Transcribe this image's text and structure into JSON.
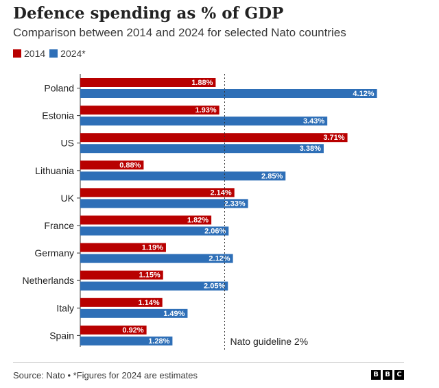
{
  "title": "Defence spending as % of GDP",
  "subtitle": "Comparison between 2014 and 2024 for selected Nato countries",
  "source": "Source: Nato • *Figures for 2024 are estimates",
  "logo": [
    "B",
    "B",
    "C"
  ],
  "colors": {
    "series_2014": "#b80000",
    "series_2024": "#2e6fb7",
    "axis": "#333333",
    "guideline": "#333333"
  },
  "chart_data": {
    "type": "bar",
    "orientation": "horizontal",
    "title": "Defence spending as % of GDP",
    "subtitle": "Comparison between 2014 and 2024 for selected Nato countries",
    "xlabel": "",
    "ylabel": "",
    "xlim": [
      0,
      4.3
    ],
    "categories": [
      "Poland",
      "Estonia",
      "US",
      "Lithuania",
      "UK",
      "France",
      "Germany",
      "Netherlands",
      "Italy",
      "Spain"
    ],
    "series": [
      {
        "name": "2014",
        "color": "#b80000",
        "values": [
          1.88,
          1.93,
          3.71,
          0.88,
          2.14,
          1.82,
          1.19,
          1.15,
          1.14,
          0.92
        ],
        "labels": [
          "1.88%",
          "1.93%",
          "3.71%",
          "0.88%",
          "2.14%",
          "1.82%",
          "1.19%",
          "1.15%",
          "1.14%",
          "0.92%"
        ]
      },
      {
        "name": "2024*",
        "color": "#2e6fb7",
        "values": [
          4.12,
          3.43,
          3.38,
          2.85,
          2.33,
          2.06,
          2.12,
          2.05,
          1.49,
          1.28
        ],
        "labels": [
          "4.12%",
          "3.43%",
          "3.38%",
          "2.85%",
          "2.33%",
          "2.06%",
          "2.12%",
          "2.05%",
          "1.49%",
          "1.28%"
        ]
      }
    ],
    "reference_line": {
      "value": 2,
      "label": "Nato guideline 2%"
    },
    "legend": "top-left"
  }
}
